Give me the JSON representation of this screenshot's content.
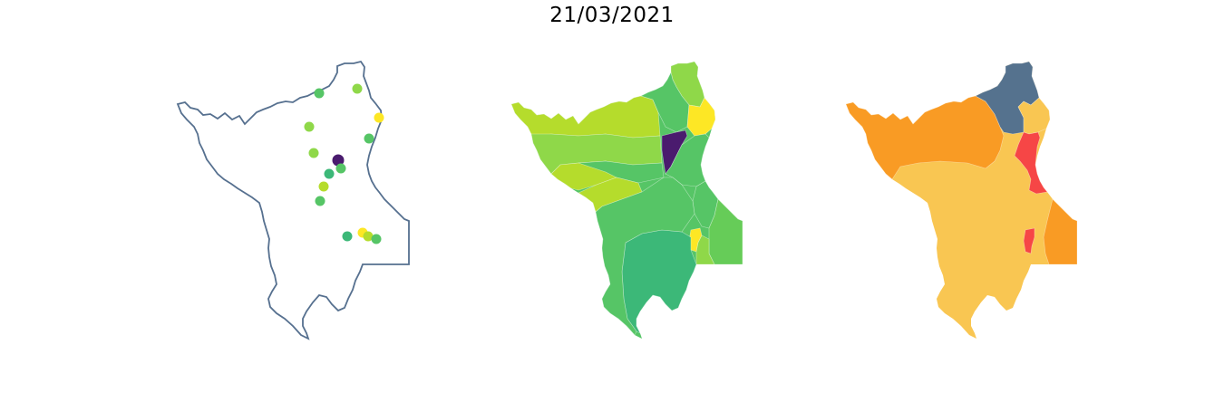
{
  "title": "21/03/2021",
  "colors": {
    "outline": "#56708f",
    "viridis_purple": "#4a1b6e",
    "viridis_green": "#3cb878",
    "viridis_mid": "#56c566",
    "viridis_lime": "#8fd849",
    "viridis_yellowgreen": "#b5dc2c",
    "viridis_yellow": "#fde725",
    "risk_blue": "#55728e",
    "risk_orange": "#f99b24",
    "risk_light": "#f9c652",
    "risk_red": "#f64646"
  },
  "panels": [
    {
      "name": "station-points-map",
      "kind": "points"
    },
    {
      "name": "viridis-choropleth-map",
      "kind": "choropleth"
    },
    {
      "name": "risk-class-choropleth-map",
      "kind": "choropleth"
    }
  ]
}
